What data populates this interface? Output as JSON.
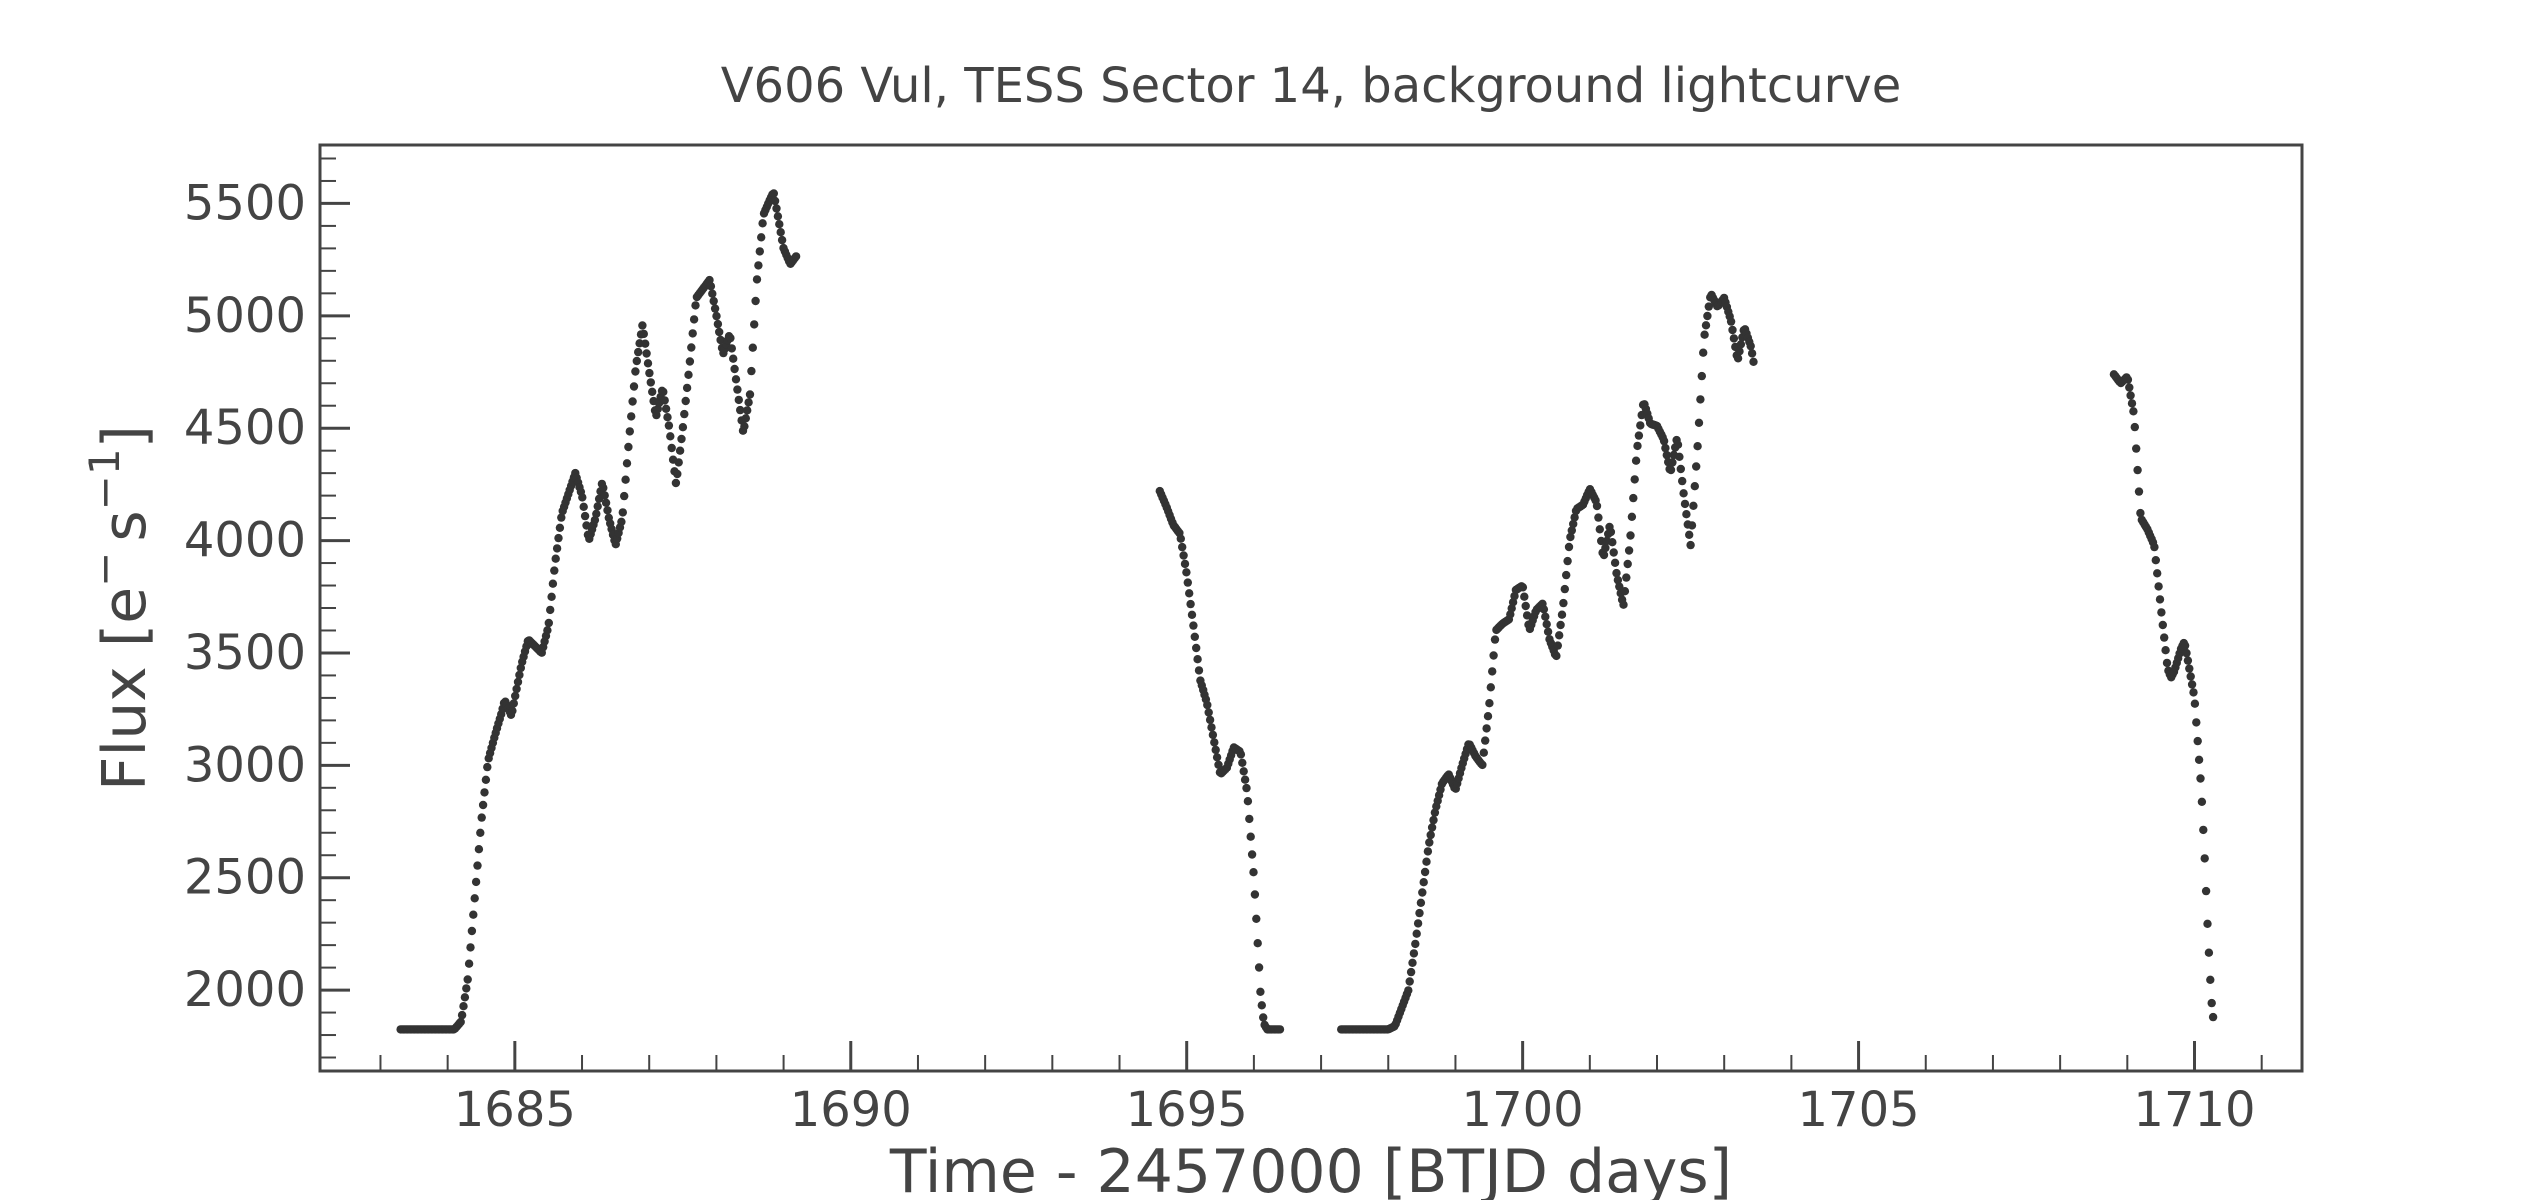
{
  "chart_data": {
    "type": "scatter",
    "title": "V606 Vul, TESS Sector 14, background lightcurve",
    "xlabel": "Time - 2457000 [BTJD days]",
    "ylabel_main": "Flux [e",
    "ylabel_sup1": "−",
    "ylabel_mid": "s",
    "ylabel_sup2": "−1",
    "ylabel_end": "]",
    "xlim": [
      1682.1,
      1711.6
    ],
    "ylim": [
      1640,
      5760
    ],
    "xticks": [
      1685,
      1690,
      1695,
      1700,
      1705,
      1710
    ],
    "xtick_labels": [
      "1685",
      "1690",
      "1695",
      "1700",
      "1705",
      "1710"
    ],
    "yticks": [
      2000,
      2500,
      3000,
      3500,
      4000,
      4500,
      5000,
      5500
    ],
    "ytick_labels": [
      "2000",
      "2500",
      "3000",
      "3500",
      "4000",
      "4500",
      "5000",
      "5500"
    ],
    "x_minor_step": 1,
    "y_minor_step": 100,
    "marker_color": "#333333",
    "points_step_days": 0.0208,
    "segments": [
      [
        [
          1683.3,
          1825
        ],
        [
          1684.1,
          1825
        ],
        [
          1684.2,
          1860
        ],
        [
          1684.3,
          2050
        ],
        [
          1684.4,
          2400
        ],
        [
          1684.5,
          2750
        ],
        [
          1684.6,
          3020
        ],
        [
          1684.7,
          3130
        ],
        [
          1684.8,
          3230
        ],
        [
          1684.85,
          3290
        ],
        [
          1684.95,
          3220
        ],
        [
          1685.0,
          3300
        ],
        [
          1685.1,
          3450
        ],
        [
          1685.2,
          3560
        ],
        [
          1685.4,
          3500
        ],
        [
          1685.5,
          3620
        ],
        [
          1685.6,
          3900
        ],
        [
          1685.7,
          4120
        ],
        [
          1685.8,
          4210
        ],
        [
          1685.9,
          4300
        ],
        [
          1686.0,
          4200
        ],
        [
          1686.1,
          4000
        ],
        [
          1686.2,
          4100
        ],
        [
          1686.3,
          4260
        ],
        [
          1686.4,
          4100
        ],
        [
          1686.5,
          3980
        ],
        [
          1686.6,
          4100
        ],
        [
          1686.7,
          4450
        ],
        [
          1686.8,
          4770
        ],
        [
          1686.9,
          4960
        ],
        [
          1687.0,
          4750
        ],
        [
          1687.1,
          4550
        ],
        [
          1687.2,
          4680
        ],
        [
          1687.3,
          4500
        ],
        [
          1687.4,
          4250
        ],
        [
          1687.5,
          4500
        ],
        [
          1687.6,
          4780
        ],
        [
          1687.7,
          5080
        ],
        [
          1687.8,
          5120
        ],
        [
          1687.9,
          5160
        ],
        [
          1688.0,
          5000
        ],
        [
          1688.1,
          4830
        ],
        [
          1688.2,
          4920
        ],
        [
          1688.3,
          4700
        ],
        [
          1688.4,
          4480
        ],
        [
          1688.5,
          4650
        ],
        [
          1688.6,
          5150
        ],
        [
          1688.7,
          5450
        ],
        [
          1688.8,
          5520
        ],
        [
          1688.85,
          5550
        ],
        [
          1688.9,
          5470
        ],
        [
          1689.0,
          5300
        ],
        [
          1689.1,
          5230
        ],
        [
          1689.2,
          5270
        ]
      ],
      [
        [
          1694.6,
          4220
        ],
        [
          1694.7,
          4150
        ],
        [
          1694.8,
          4070
        ],
        [
          1694.9,
          4030
        ],
        [
          1695.0,
          3850
        ],
        [
          1695.1,
          3620
        ],
        [
          1695.2,
          3380
        ],
        [
          1695.3,
          3280
        ],
        [
          1695.4,
          3120
        ],
        [
          1695.5,
          2960
        ],
        [
          1695.6,
          2990
        ],
        [
          1695.7,
          3080
        ],
        [
          1695.8,
          3060
        ],
        [
          1695.9,
          2880
        ],
        [
          1696.0,
          2500
        ],
        [
          1696.1,
          1980
        ],
        [
          1696.15,
          1850
        ],
        [
          1696.2,
          1825
        ],
        [
          1696.4,
          1825
        ]
      ],
      [
        [
          1697.3,
          1825
        ],
        [
          1698.0,
          1825
        ],
        [
          1698.1,
          1840
        ],
        [
          1698.3,
          2000
        ],
        [
          1698.4,
          2200
        ],
        [
          1698.5,
          2420
        ],
        [
          1698.6,
          2640
        ],
        [
          1698.7,
          2800
        ],
        [
          1698.8,
          2920
        ],
        [
          1698.9,
          2960
        ],
        [
          1699.0,
          2890
        ],
        [
          1699.1,
          3000
        ],
        [
          1699.2,
          3100
        ],
        [
          1699.3,
          3040
        ],
        [
          1699.4,
          3000
        ],
        [
          1699.5,
          3260
        ],
        [
          1699.6,
          3600
        ],
        [
          1699.7,
          3630
        ],
        [
          1699.8,
          3650
        ],
        [
          1699.9,
          3780
        ],
        [
          1700.0,
          3800
        ],
        [
          1700.1,
          3600
        ],
        [
          1700.2,
          3690
        ],
        [
          1700.3,
          3720
        ],
        [
          1700.4,
          3560
        ],
        [
          1700.5,
          3480
        ],
        [
          1700.6,
          3700
        ],
        [
          1700.7,
          4000
        ],
        [
          1700.8,
          4140
        ],
        [
          1700.9,
          4160
        ],
        [
          1701.0,
          4230
        ],
        [
          1701.1,
          4170
        ],
        [
          1701.2,
          3920
        ],
        [
          1701.3,
          4070
        ],
        [
          1701.4,
          3850
        ],
        [
          1701.5,
          3710
        ],
        [
          1701.6,
          4000
        ],
        [
          1701.7,
          4400
        ],
        [
          1701.8,
          4620
        ],
        [
          1701.9,
          4520
        ],
        [
          1702.0,
          4510
        ],
        [
          1702.1,
          4450
        ],
        [
          1702.2,
          4300
        ],
        [
          1702.3,
          4460
        ],
        [
          1702.4,
          4200
        ],
        [
          1702.5,
          3980
        ],
        [
          1702.6,
          4400
        ],
        [
          1702.7,
          4900
        ],
        [
          1702.8,
          5100
        ],
        [
          1702.9,
          5040
        ],
        [
          1703.0,
          5080
        ],
        [
          1703.1,
          4980
        ],
        [
          1703.2,
          4800
        ],
        [
          1703.3,
          4950
        ],
        [
          1703.4,
          4860
        ],
        [
          1703.45,
          4770
        ]
      ],
      [
        [
          1708.8,
          4740
        ],
        [
          1708.9,
          4700
        ],
        [
          1709.0,
          4730
        ],
        [
          1709.1,
          4560
        ],
        [
          1709.2,
          4100
        ],
        [
          1709.3,
          4050
        ],
        [
          1709.4,
          3980
        ],
        [
          1709.5,
          3700
        ],
        [
          1709.6,
          3430
        ],
        [
          1709.65,
          3390
        ],
        [
          1709.7,
          3420
        ],
        [
          1709.8,
          3520
        ],
        [
          1709.85,
          3550
        ],
        [
          1709.9,
          3470
        ],
        [
          1710.0,
          3300
        ],
        [
          1710.1,
          2900
        ],
        [
          1710.15,
          2600
        ],
        [
          1710.2,
          2250
        ],
        [
          1710.25,
          1960
        ],
        [
          1710.28,
          1870
        ]
      ]
    ]
  }
}
